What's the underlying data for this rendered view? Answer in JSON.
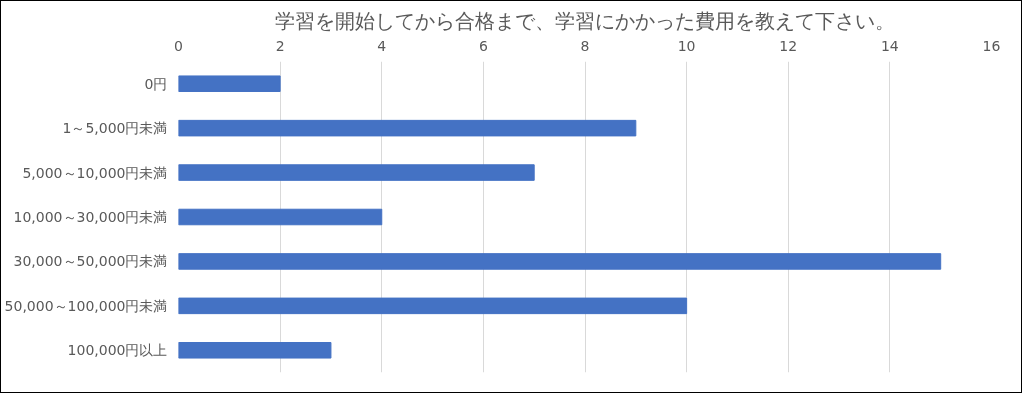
{
  "chart_data": {
    "type": "bar",
    "orientation": "horizontal",
    "title": "学習を開始してから合格まで、学習にかかった費用を教えて下さい。",
    "categories": [
      "0円",
      "1～5,000円未満",
      "5,000～10,000円未満",
      "10,000～30,000円未満",
      "30,000～50,000円未満",
      "50,000～100,000円未満",
      "100,000円以上"
    ],
    "values": [
      2,
      9,
      7,
      4,
      15,
      10,
      3
    ],
    "color": "#4472c4",
    "xlim": [
      0,
      16
    ],
    "xticks": [
      0,
      2,
      4,
      6,
      8,
      10,
      12,
      14,
      16
    ],
    "grid": "x"
  }
}
